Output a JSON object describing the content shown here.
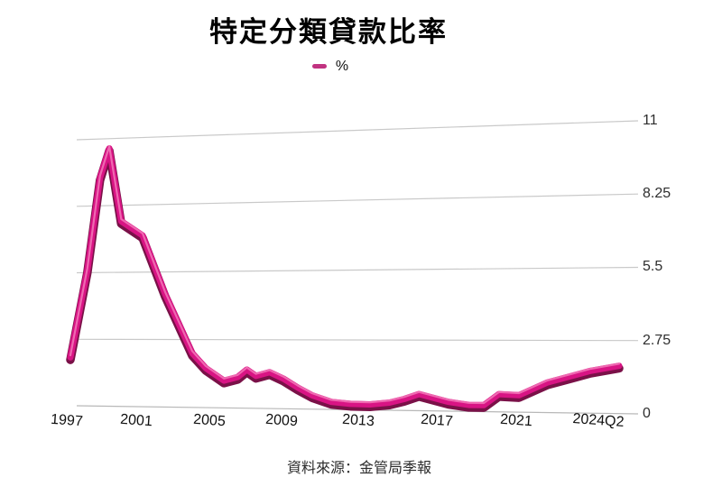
{
  "title": "特定分類貸款比率",
  "legend": {
    "series_label": "%",
    "swatch_color": "#C13280"
  },
  "source": "資料來源：金管局季報",
  "colors": {
    "line_main": "#D81484",
    "line_dark": "#7A1148",
    "line_highlight": "#F272B6",
    "grid": "#C9C9C9",
    "zero_line": "#B8B8B8"
  },
  "chart_data": {
    "type": "line",
    "title": "特定分類貸款比率",
    "unit": "%",
    "ylabel": "%",
    "ylim": [
      0,
      11
    ],
    "y_ticks": [
      "11",
      "8.25",
      "5.5",
      "2.75",
      "0"
    ],
    "y_tick_values": [
      11,
      8.25,
      5.5,
      2.75,
      0
    ],
    "x_ticks": [
      {
        "label": "1997",
        "year": 1997
      },
      {
        "label": "2001",
        "year": 2001
      },
      {
        "label": "2005",
        "year": 2005
      },
      {
        "label": "2009",
        "year": 2009
      },
      {
        "label": "2013",
        "year": 2013
      },
      {
        "label": "2017",
        "year": 2017
      },
      {
        "label": "2021",
        "year": 2021
      },
      {
        "label": "2024Q2",
        "year": 2024.5
      }
    ],
    "grid": "horizontal",
    "legend_position": "top-center",
    "series": [
      {
        "name": "%",
        "points": [
          [
            1997.0,
            2.0
          ],
          [
            1998.0,
            5.6
          ],
          [
            1998.75,
            9.4
          ],
          [
            1999.3,
            10.6
          ],
          [
            2000.0,
            7.6
          ],
          [
            2001.25,
            7.0
          ],
          [
            2002.5,
            4.6
          ],
          [
            2003.0,
            3.8
          ],
          [
            2004.0,
            2.2
          ],
          [
            2004.75,
            1.6
          ],
          [
            2005.75,
            1.1
          ],
          [
            2006.5,
            1.25
          ],
          [
            2007.0,
            1.55
          ],
          [
            2007.5,
            1.3
          ],
          [
            2008.25,
            1.45
          ],
          [
            2009.0,
            1.2
          ],
          [
            2009.75,
            0.85
          ],
          [
            2010.5,
            0.55
          ],
          [
            2011.5,
            0.3
          ],
          [
            2012.5,
            0.23
          ],
          [
            2013.5,
            0.22
          ],
          [
            2014.5,
            0.3
          ],
          [
            2015.25,
            0.45
          ],
          [
            2016.0,
            0.65
          ],
          [
            2017.5,
            0.36
          ],
          [
            2018.5,
            0.25
          ],
          [
            2019.25,
            0.25
          ],
          [
            2020.0,
            0.68
          ],
          [
            2021.0,
            0.65
          ],
          [
            2022.0,
            1.15
          ],
          [
            2023.0,
            1.45
          ],
          [
            2023.5,
            1.6
          ],
          [
            2024.5,
            1.8
          ]
        ]
      }
    ],
    "source": "資料來源：金管局季報"
  }
}
